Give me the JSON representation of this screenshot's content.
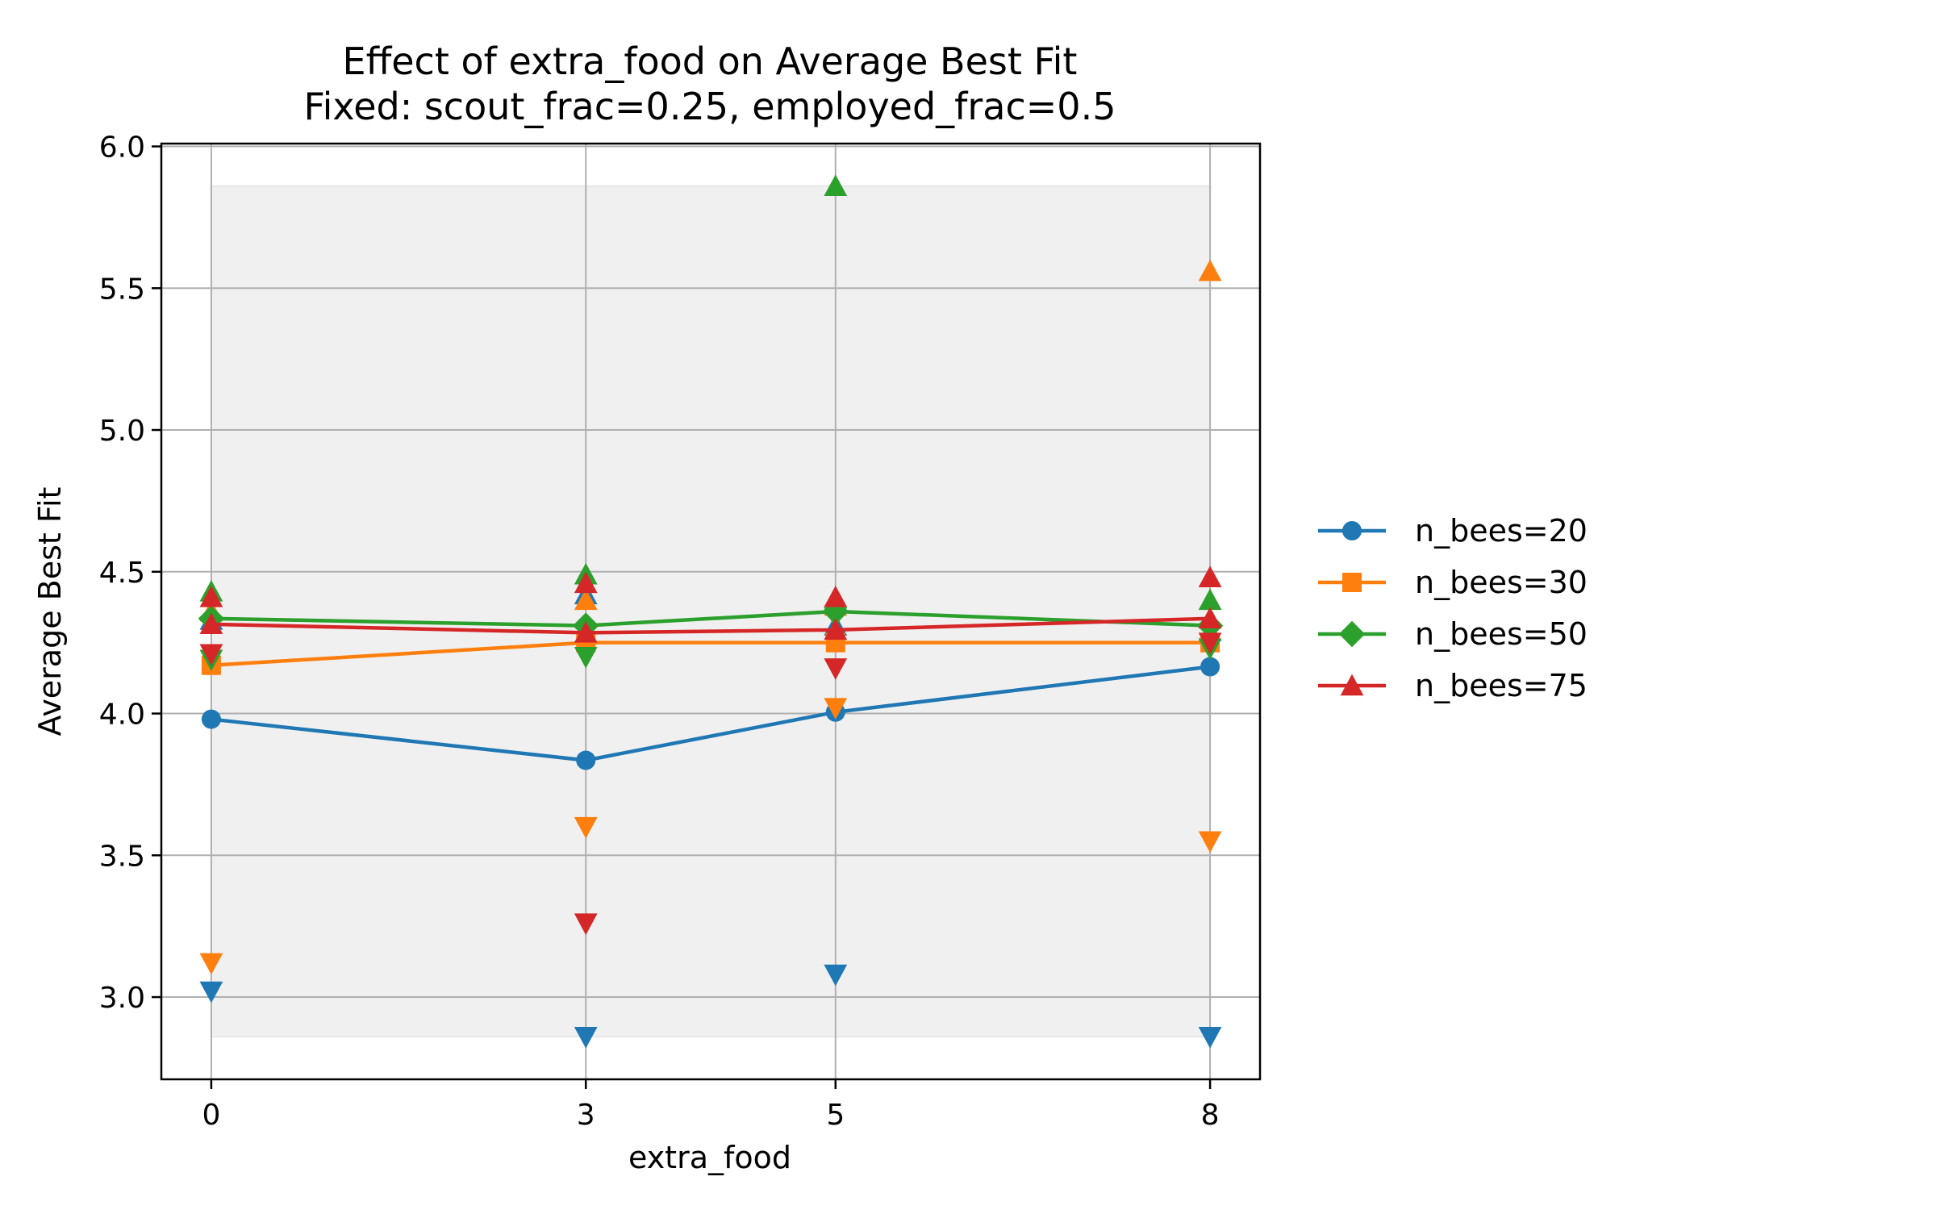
{
  "chart_data": {
    "type": "line",
    "title": "Effect of extra_food on Average Best Fit",
    "subtitle": "Fixed: scout_frac=0.25, employed_frac=0.5",
    "xlabel": "extra_food",
    "ylabel": "Average Best Fit",
    "categories": [
      "0",
      "3",
      "5",
      "8"
    ],
    "x": [
      0,
      3,
      5,
      8
    ],
    "xlim": [
      -0.4,
      8.4
    ],
    "ylim": [
      2.71,
      6.01
    ],
    "y_ticks": [
      "3.0",
      "3.5",
      "4.0",
      "4.5",
      "5.0",
      "5.5",
      "6.0"
    ],
    "grid": true,
    "legend_position": "right, outside plot",
    "shaded_band": {
      "y_min": 2.86,
      "y_max": 5.86,
      "x_min": 0,
      "x_max": 8,
      "color": "#f0f0f0"
    },
    "series": [
      {
        "name": "n_bees=20",
        "color": "#1f77b4",
        "marker": "circle",
        "values": [
          3.98,
          3.835,
          4.005,
          4.165
        ],
        "max": [
          4.33,
          4.42,
          4.31,
          4.29
        ],
        "min": [
          3.02,
          2.86,
          3.08,
          2.86
        ]
      },
      {
        "name": "n_bees=30",
        "color": "#ff7f0e",
        "marker": "square",
        "values": [
          4.17,
          4.25,
          4.25,
          4.25
        ],
        "max": [
          4.36,
          4.4,
          4.38,
          5.56
        ],
        "min": [
          3.12,
          3.6,
          4.02,
          3.55
        ]
      },
      {
        "name": "n_bees=50",
        "color": "#2ca02c",
        "marker": "diamond",
        "values": [
          4.335,
          4.31,
          4.36,
          4.31
        ],
        "max": [
          4.43,
          4.49,
          5.86,
          4.4
        ],
        "min": [
          4.19,
          4.2,
          4.34,
          4.23
        ]
      },
      {
        "name": "n_bees=75",
        "color": "#d62728",
        "marker": "triangle",
        "values": [
          4.315,
          4.285,
          4.295,
          4.335
        ],
        "max": [
          4.41,
          4.46,
          4.41,
          4.48
        ],
        "min": [
          4.21,
          3.26,
          4.16,
          4.25
        ]
      }
    ]
  }
}
